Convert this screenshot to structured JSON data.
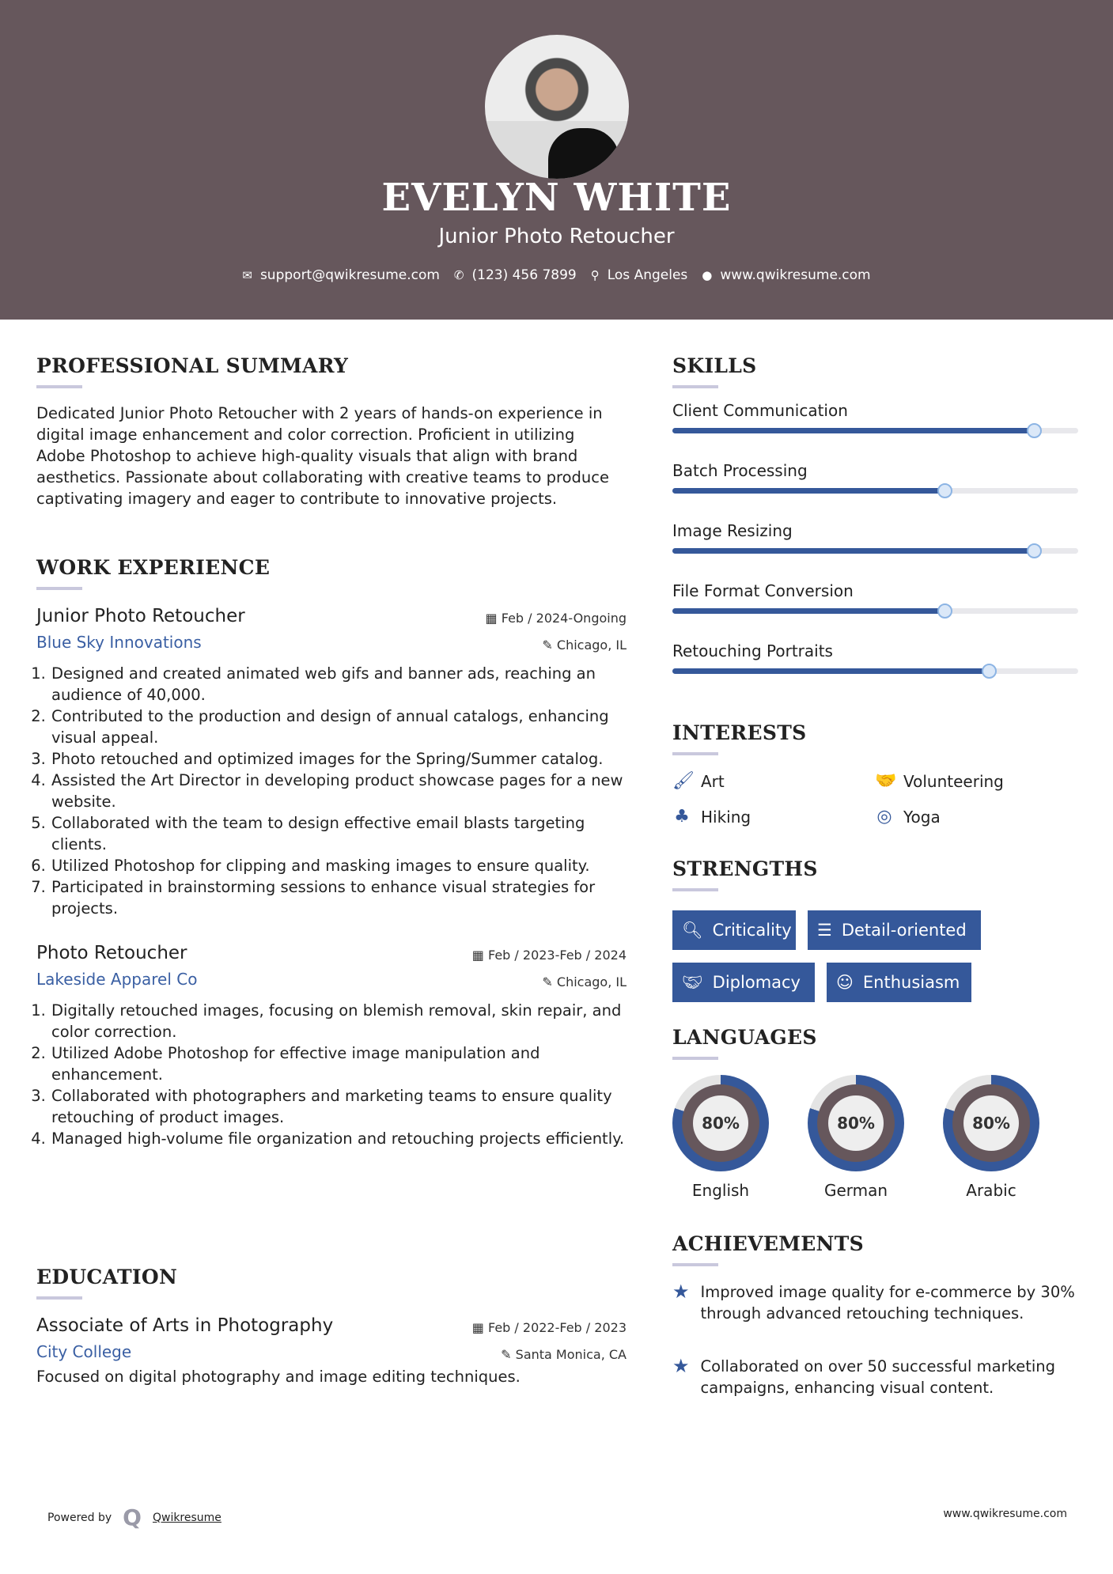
{
  "header": {
    "name": "EVELYN WHITE",
    "title": "Junior Photo Retoucher",
    "email": "support@qwikresume.com",
    "phone": "(123) 456 7899",
    "location": "Los Angeles",
    "website": "www.qwikresume.com"
  },
  "summary": {
    "heading": "PROFESSIONAL SUMMARY",
    "text": "Dedicated Junior Photo Retoucher with 2 years of hands-on experience in digital image enhancement and color correction. Proficient in utilizing Adobe Photoshop to achieve high-quality visuals that align with brand aesthetics. Passionate about collaborating with creative teams to produce captivating imagery and eager to contribute to innovative projects."
  },
  "work": {
    "heading": "WORK EXPERIENCE",
    "jobs": [
      {
        "title": "Junior Photo Retoucher",
        "company": "Blue Sky Innovations",
        "date": "Feb / 2024-Ongoing",
        "location": "Chicago, IL",
        "bullets": [
          "Designed and created animated web gifs and banner ads, reaching an audience of 40,000.",
          "Contributed to the production and design of annual catalogs, enhancing visual appeal.",
          "Photo retouched and optimized images for the Spring/Summer catalog.",
          "Assisted the Art Director in developing product showcase pages for a new website.",
          "Collaborated with the team to design effective email blasts targeting clients.",
          "Utilized Photoshop for clipping and masking images to ensure quality.",
          "Participated in brainstorming sessions to enhance visual strategies for projects."
        ]
      },
      {
        "title": "Photo Retoucher",
        "company": "Lakeside Apparel Co",
        "date": "Feb / 2023-Feb / 2024",
        "location": "Chicago, IL",
        "bullets": [
          "Digitally retouched images, focusing on blemish removal, skin repair, and color correction.",
          "Utilized Adobe Photoshop for effective image manipulation and enhancement.",
          "Collaborated with photographers and marketing teams to ensure quality retouching of product images.",
          "Managed high-volume file organization and retouching projects efficiently."
        ]
      }
    ]
  },
  "education": {
    "heading": "EDUCATION",
    "degree": "Associate of Arts in Photography",
    "school": "City College",
    "date": "Feb / 2022-Feb / 2023",
    "location": "Santa Monica, CA",
    "description": "Focused on digital photography and image editing techniques."
  },
  "skills": {
    "heading": "SKILLS",
    "items": [
      {
        "name": "Client Communication",
        "level": 89
      },
      {
        "name": "Batch Processing",
        "level": 67
      },
      {
        "name": "Image Resizing",
        "level": 89
      },
      {
        "name": "File Format Conversion",
        "level": 67
      },
      {
        "name": "Retouching Portraits",
        "level": 78
      }
    ]
  },
  "interests": {
    "heading": "INTERESTS",
    "items": [
      {
        "label": "Art",
        "icon": "paintbrush-icon"
      },
      {
        "label": "Volunteering",
        "icon": "handshake-icon"
      },
      {
        "label": "Hiking",
        "icon": "tree-icon"
      },
      {
        "label": "Yoga",
        "icon": "lifering-icon"
      }
    ]
  },
  "strengths": {
    "heading": "STRENGTHS",
    "items": [
      {
        "label": "Criticality",
        "icon": "search-icon"
      },
      {
        "label": "Detail-oriented",
        "icon": "list-icon"
      },
      {
        "label": "Diplomacy",
        "icon": "handshake-icon"
      },
      {
        "label": "Enthusiasm",
        "icon": "smile-icon"
      }
    ]
  },
  "languages": {
    "heading": "LANGUAGES",
    "items": [
      {
        "name": "English",
        "level": "80%"
      },
      {
        "name": "German",
        "level": "80%"
      },
      {
        "name": "Arabic",
        "level": "80%"
      }
    ]
  },
  "achievements": {
    "heading": "ACHIEVEMENTS",
    "items": [
      "Improved image quality for e-commerce by 30% through advanced retouching techniques.",
      "Collaborated on over 50 successful marketing campaigns, enhancing visual content."
    ]
  },
  "footer": {
    "powered_by": "Powered by",
    "brand": "Qwikresume",
    "website": "www.qwikresume.com"
  },
  "colors": {
    "header_bg": "#66575c",
    "accent": "#35589a"
  }
}
